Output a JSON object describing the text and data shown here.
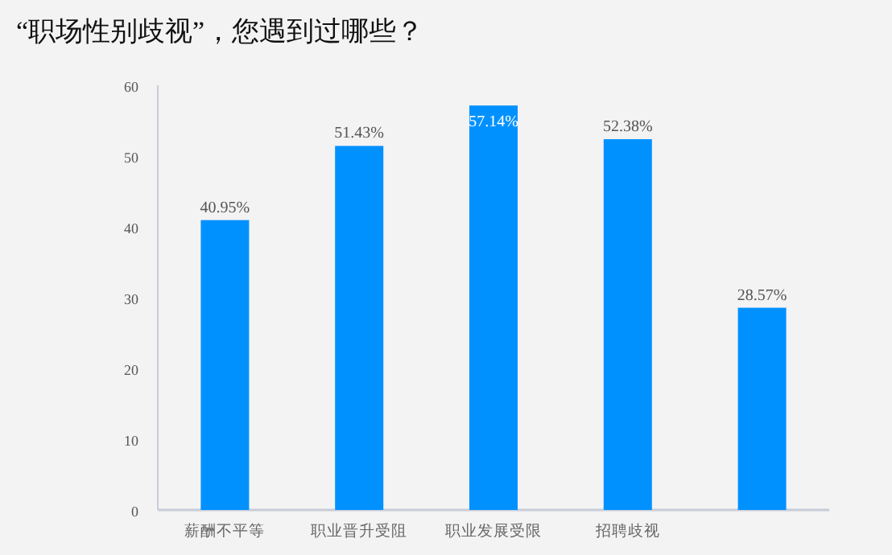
{
  "chart_data": {
    "type": "bar",
    "title": "“职场性别歧视”，您遇到过哪些？",
    "categories": [
      "薪酬不平等",
      "职业晋升受阻",
      "职业发展受限",
      "招聘歧视",
      null
    ],
    "values": [
      40.95,
      51.43,
      57.14,
      52.38,
      28.57
    ],
    "value_labels": [
      "40.95%",
      "51.43%",
      "57.14%",
      "52.38%",
      "28.57%"
    ],
    "color": "#0091ff",
    "ylim": [
      0,
      60
    ],
    "yticks": [
      0,
      10,
      20,
      30,
      40,
      50,
      60
    ]
  }
}
